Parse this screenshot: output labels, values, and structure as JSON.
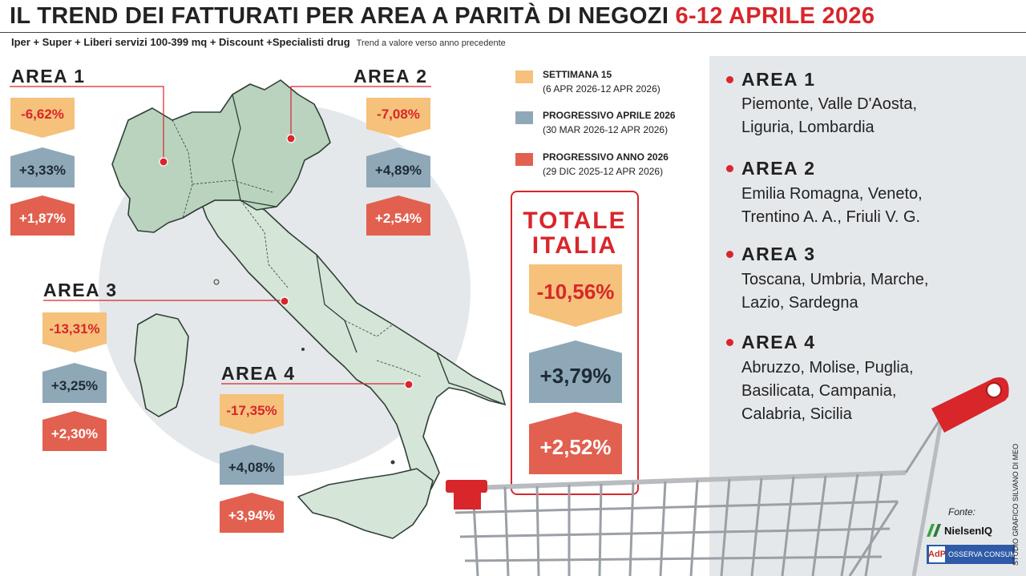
{
  "header": {
    "title_main": "IL TREND DEI FATTURATI PER AREA A PARITÀ DI NEGOZI",
    "title_date": "6-12 APRILE 2026",
    "subtitle": "Iper + Super + Liberi servizi 100-399 mq + Discount +Specialisti drug",
    "subtitle_note": "Trend a valore verso anno precedente"
  },
  "legend": [
    {
      "label": "SETTIMANA 15",
      "period": "(6 APR 2026-12 APR 2026)",
      "color": "#f5c17b"
    },
    {
      "label": "PROGRESSIVO APRILE 2026",
      "period": "(30 MAR 2026-12 APR 2026)",
      "color": "#8fa8b8"
    },
    {
      "label": "PROGRESSIVO ANNO 2026",
      "period": "(29 DIC 2025-12 APR 2026)",
      "color": "#e2604f"
    }
  ],
  "chart_data": {
    "type": "table",
    "unit": "%",
    "series": [
      "SETTIMANA 15",
      "PROGRESSIVO APRILE 2026",
      "PROGRESSIVO ANNO 2026"
    ],
    "areas": [
      {
        "name": "AREA 1",
        "values": [
          "-6,62%",
          "+3,33%",
          "+1,87%"
        ]
      },
      {
        "name": "AREA 2",
        "values": [
          "-7,08%",
          "+4,89%",
          "+2,54%"
        ]
      },
      {
        "name": "AREA 3",
        "values": [
          "-13,31%",
          "+3,25%",
          "+2,30%"
        ]
      },
      {
        "name": "AREA 4",
        "values": [
          "-17,35%",
          "+4,08%",
          "+3,94%"
        ]
      }
    ],
    "totale": {
      "name": "TOTALE ITALIA",
      "values": [
        "-10,56%",
        "+3,79%",
        "+2,52%"
      ]
    }
  },
  "totale": {
    "title_line1": "TOTALE",
    "title_line2": "ITALIA"
  },
  "regions": [
    {
      "title": "AREA 1",
      "lines": [
        "Piemonte, Valle D'Aosta,",
        "Liguria, Lombardia"
      ]
    },
    {
      "title": "AREA 2",
      "lines": [
        "Emilia Romagna, Veneto,",
        "Trentino A. A., Friuli V. G."
      ]
    },
    {
      "title": "AREA 3",
      "lines": [
        "Toscana, Umbria, Marche,",
        "Lazio, Sardegna"
      ]
    },
    {
      "title": "AREA 4",
      "lines": [
        "Abruzzo, Molise, Puglia,",
        "Basilicata, Campania,",
        "Calabria, Sicilia"
      ]
    }
  ],
  "footer": {
    "fonte_label": "Fonte:",
    "nielsen_label": "NielsenIQ",
    "osserva_mark": "AdP",
    "osserva_label": "OSSERVA CONSUMI",
    "credit": "STUDIO GRAFICO SILVANO DI MEO"
  },
  "colors": {
    "accent_red": "#d8262b",
    "map_fill": "#d5e6d8",
    "map_fill_north": "#b9d3bf",
    "circle_bg": "#e5e8eb",
    "cart_red": "#d8262b"
  }
}
